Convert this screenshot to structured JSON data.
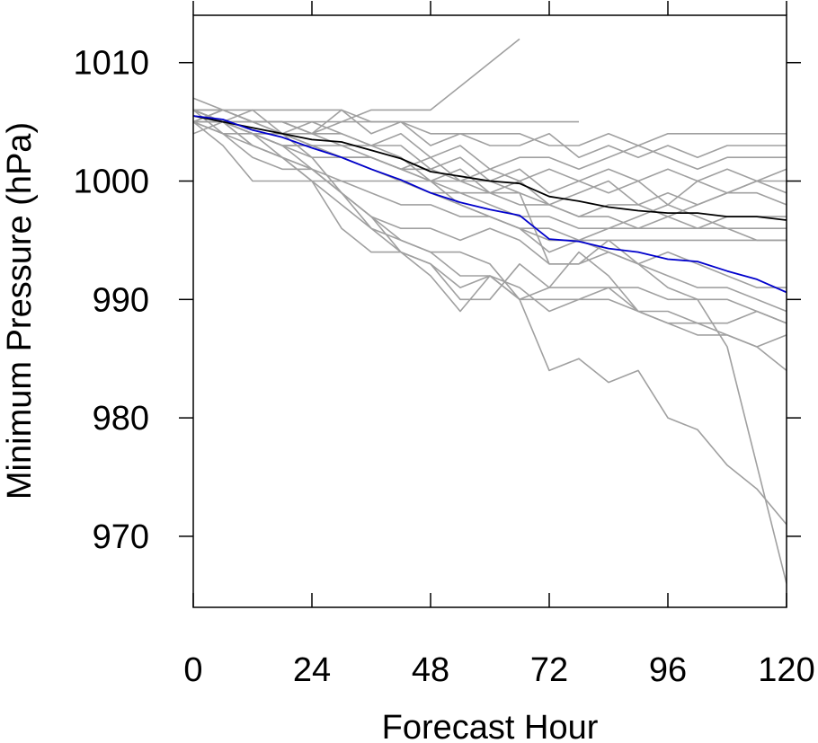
{
  "chart_data": {
    "type": "line",
    "title": "",
    "xlabel": "Forecast Hour",
    "ylabel": "Minimum Pressure (hPa)",
    "xlim": [
      0,
      120
    ],
    "ylim": [
      964,
      1014
    ],
    "x_ticks": [
      0,
      24,
      48,
      72,
      96,
      120
    ],
    "y_ticks": [
      970,
      980,
      990,
      1000,
      1010
    ],
    "x_tick_labels": [
      "0",
      "24",
      "48",
      "72",
      "96",
      "120"
    ],
    "y_tick_labels": [
      "970",
      "980",
      "990",
      "1000",
      "1010"
    ],
    "grid": false,
    "legend": "none",
    "colors": {
      "members": "#a0a0a0",
      "mean": "#000000",
      "highlight": "#0000cc"
    },
    "series": [
      {
        "role": "member",
        "x": [
          0,
          6,
          12,
          18,
          24,
          30,
          36,
          42,
          48,
          54,
          60,
          66
        ],
        "y": [
          1006,
          1006,
          1005,
          1005,
          1004,
          1005,
          1006,
          1006,
          1006,
          1008,
          1010,
          1012
        ]
      },
      {
        "role": "member",
        "x": [
          0,
          6,
          12,
          18,
          24,
          30,
          36,
          42,
          48,
          54,
          60,
          66,
          72,
          78
        ],
        "y": [
          1005,
          1005,
          1005,
          1005,
          1005,
          1005,
          1005,
          1005,
          1005,
          1005,
          1005,
          1005,
          1005,
          1005
        ]
      },
      {
        "role": "member",
        "x": [
          0,
          6,
          12,
          18,
          24,
          30,
          36,
          42,
          48,
          54,
          60,
          66,
          72,
          78,
          84,
          90,
          96,
          102,
          108,
          114,
          120
        ],
        "y": [
          1006,
          1006,
          1006,
          1006,
          1006,
          1006,
          1005,
          1005,
          1004,
          1004,
          1004,
          1004,
          1003,
          1003,
          1004,
          1003,
          1004,
          1004,
          1004,
          1004,
          1004
        ]
      },
      {
        "role": "member",
        "x": [
          0,
          6,
          12,
          18,
          24,
          30,
          36,
          42,
          48,
          54,
          60,
          66,
          72,
          78,
          84,
          90,
          96,
          102,
          108,
          114,
          120
        ],
        "y": [
          1005,
          1006,
          1005,
          1005,
          1004,
          1006,
          1004,
          1005,
          1003,
          1004,
          1003,
          1003,
          1004,
          1002,
          1003,
          1002,
          1003,
          1002,
          1003,
          1003,
          1003
        ]
      },
      {
        "role": "member",
        "x": [
          0,
          6,
          12,
          18,
          24,
          30,
          36,
          42,
          48,
          54,
          60,
          66,
          72,
          78,
          84,
          90,
          96,
          102,
          108,
          114,
          120
        ],
        "y": [
          1006,
          1005,
          1006,
          1004,
          1005,
          1004,
          1003,
          1004,
          1002,
          1003,
          1001,
          1002,
          1002,
          1001,
          1002,
          1003,
          1002,
          1001,
          1002,
          1002,
          1002
        ]
      },
      {
        "role": "member",
        "x": [
          0,
          6,
          12,
          18,
          24,
          30,
          36,
          42,
          48,
          54,
          60,
          66,
          72,
          78,
          84,
          90,
          96,
          102,
          108,
          114,
          120
        ],
        "y": [
          1005,
          1006,
          1005,
          1004,
          1003,
          1003,
          1002,
          1001,
          1002,
          1000,
          1001,
          1000,
          1001,
          1000,
          1001,
          1000,
          1001,
          1000,
          1001,
          1000,
          1001
        ]
      },
      {
        "role": "member",
        "x": [
          0,
          6,
          12,
          18,
          24,
          30,
          36,
          42,
          48,
          54,
          60,
          66,
          72,
          78,
          84,
          90,
          96,
          102,
          108,
          114,
          120
        ],
        "y": [
          1006,
          1005,
          1005,
          1005,
          1004,
          1004,
          1003,
          1003,
          1001,
          1002,
          1000,
          1001,
          999,
          1000,
          999,
          1000,
          998,
          1000,
          999,
          1000,
          1000
        ]
      },
      {
        "role": "member",
        "x": [
          0,
          6,
          12,
          18,
          24,
          30,
          36,
          42,
          48,
          54,
          60,
          66,
          72,
          78,
          84,
          90,
          96,
          102,
          108,
          114,
          120
        ],
        "y": [
          1005,
          1005,
          1004,
          1004,
          1004,
          1003,
          1003,
          1002,
          1000,
          1001,
          999,
          1000,
          998,
          999,
          1000,
          998,
          999,
          998,
          999,
          1000,
          999
        ]
      },
      {
        "role": "member",
        "x": [
          0,
          6,
          12,
          18,
          24,
          30,
          36,
          42,
          48,
          54,
          60,
          66,
          72,
          78,
          84,
          90,
          96,
          102,
          108,
          114,
          120
        ],
        "y": [
          1004,
          1005,
          1004,
          1003,
          1003,
          1002,
          1002,
          1001,
          1000,
          1000,
          999,
          999,
          998,
          997,
          998,
          998,
          997,
          998,
          999,
          999,
          998
        ]
      },
      {
        "role": "member",
        "x": [
          0,
          6,
          12,
          18,
          24,
          30,
          36,
          42,
          48,
          54,
          60,
          66,
          72,
          78,
          84,
          90,
          96,
          102,
          108,
          114,
          120
        ],
        "y": [
          1005,
          1005,
          1004,
          1004,
          1003,
          1002,
          1002,
          1001,
          1000,
          999,
          999,
          998,
          998,
          997,
          997,
          996,
          997,
          996,
          997,
          997,
          997
        ]
      },
      {
        "role": "member",
        "x": [
          0,
          6,
          12,
          18,
          24,
          30,
          36,
          42,
          48,
          54,
          60,
          66,
          72,
          78,
          84,
          90,
          96,
          102,
          108,
          114,
          120
        ],
        "y": [
          1005,
          1004,
          1004,
          1003,
          1003,
          1002,
          1001,
          1000,
          999,
          999,
          998,
          997,
          997,
          996,
          996,
          996,
          996,
          996,
          996,
          996,
          996
        ]
      },
      {
        "role": "member",
        "x": [
          0,
          6,
          12,
          18,
          24,
          30,
          36,
          42,
          48,
          54,
          60,
          66,
          72,
          78,
          84,
          90,
          96,
          102,
          108,
          114,
          120
        ],
        "y": [
          1006,
          1005,
          1004,
          1003,
          1002,
          1002,
          1001,
          1000,
          999,
          998,
          997,
          996,
          996,
          995,
          995,
          995,
          995,
          995,
          995,
          995,
          995
        ]
      },
      {
        "role": "member",
        "x": [
          0,
          6,
          12,
          18,
          24,
          30,
          36,
          42,
          48,
          54,
          60,
          66,
          72,
          78,
          84,
          90,
          96,
          102,
          108,
          114,
          120
        ],
        "y": [
          1005,
          1004,
          1002,
          1001,
          1001,
          1000,
          999,
          998,
          998,
          997,
          997,
          996,
          995,
          995,
          996,
          997,
          998,
          997,
          996,
          995,
          995
        ]
      },
      {
        "role": "member",
        "x": [
          0,
          6,
          12,
          18,
          24,
          30,
          36,
          42,
          48,
          54,
          60,
          66,
          72,
          78,
          84,
          90,
          96,
          102,
          108,
          114,
          120
        ],
        "y": [
          1005,
          1003,
          1000,
          1000,
          1000,
          1000,
          1000,
          1000,
          1000,
          998,
          997,
          996,
          994,
          995,
          994,
          993,
          994,
          993,
          992,
          991,
          991
        ]
      },
      {
        "role": "member",
        "x": [
          0,
          6,
          12,
          18,
          24,
          30,
          36,
          42,
          48,
          54,
          60,
          66,
          72,
          78,
          84,
          90,
          96,
          102,
          108,
          114,
          120
        ],
        "y": [
          1006,
          1005,
          1004,
          1003,
          1001,
          999,
          997,
          996,
          996,
          995,
          996,
          995,
          993,
          993,
          994,
          993,
          992,
          991,
          991,
          990,
          989
        ]
      },
      {
        "role": "member",
        "x": [
          0,
          6,
          12,
          18,
          24,
          30,
          36,
          42,
          48,
          54,
          60,
          66,
          72,
          78,
          84,
          90,
          96,
          102,
          108,
          114,
          120
        ],
        "y": [
          1006,
          1005,
          1004,
          1002,
          1000,
          998,
          996,
          995,
          994,
          994,
          993,
          990,
          991,
          991,
          991,
          991,
          990,
          990,
          990,
          989,
          988
        ]
      },
      {
        "role": "member",
        "x": [
          0,
          6,
          12,
          18,
          24,
          30,
          36,
          42,
          48,
          54,
          60,
          66,
          72,
          78,
          84,
          90,
          96,
          102,
          108,
          114,
          120
        ],
        "y": [
          1007,
          1006,
          1005,
          1004,
          1002,
          999,
          996,
          994,
          993,
          991,
          992,
          990,
          990,
          990,
          990,
          989,
          989,
          988,
          988,
          989,
          988
        ]
      },
      {
        "role": "member",
        "x": [
          0,
          6,
          12,
          18,
          24,
          30,
          36,
          42,
          48,
          54,
          60,
          66,
          72,
          78,
          84,
          90,
          96,
          102,
          108,
          114,
          120
        ],
        "y": [
          1006,
          1005,
          1003,
          1002,
          1001,
          999,
          997,
          994,
          992,
          989,
          992,
          991,
          989,
          990,
          991,
          989,
          988,
          987,
          987,
          986,
          987
        ]
      },
      {
        "role": "member",
        "x": [
          0,
          6,
          12,
          18,
          24,
          30,
          36,
          42,
          48,
          54,
          60,
          66,
          72,
          78,
          84,
          90,
          96,
          102,
          108,
          114,
          120
        ],
        "y": [
          1006,
          1004,
          1003,
          1002,
          1000,
          996,
          994,
          994,
          993,
          990,
          990,
          993,
          991,
          994,
          992,
          989,
          988,
          988,
          987,
          986,
          984
        ]
      },
      {
        "role": "member",
        "x": [
          0,
          6,
          12,
          18,
          24,
          30,
          36,
          42,
          48,
          54,
          60,
          66,
          72,
          78,
          84,
          90,
          96,
          102,
          108,
          114,
          120
        ],
        "y": [
          1006,
          1005,
          1003,
          1002,
          1001,
          999,
          997,
          995,
          994,
          992,
          992,
          990,
          984,
          985,
          983,
          984,
          980,
          979,
          976,
          974,
          971
        ]
      },
      {
        "role": "member",
        "x": [
          0,
          6,
          12,
          18,
          24,
          30,
          36,
          42,
          48,
          54,
          60,
          66,
          72,
          78,
          84,
          90,
          96,
          102,
          108,
          114,
          120
        ],
        "y": [
          1006,
          1005,
          1004,
          1003,
          1003,
          1002,
          1002,
          1001,
          1001,
          1000,
          1000,
          999,
          993,
          993,
          995,
          993,
          991,
          990,
          986,
          976,
          966
        ]
      },
      {
        "role": "mean",
        "x": [
          0,
          6,
          12,
          18,
          24,
          30,
          36,
          42,
          48,
          54,
          60,
          66,
          72,
          78,
          84,
          90,
          96,
          102,
          108,
          114,
          120
        ],
        "y": [
          1005.5,
          1005.0,
          1004.5,
          1004.0,
          1003.5,
          1003.3,
          1002.6,
          1001.9,
          1000.8,
          1000.4,
          1000.0,
          999.8,
          998.7,
          998.3,
          997.8,
          997.5,
          997.3,
          997.3,
          997.0,
          997.0,
          996.7
        ]
      },
      {
        "role": "highlight",
        "x": [
          0,
          6,
          12,
          18,
          24,
          30,
          36,
          42,
          48,
          54,
          60,
          66,
          72,
          78,
          84,
          90,
          96,
          102,
          108,
          114,
          120
        ],
        "y": [
          1005.5,
          1005.2,
          1004.3,
          1003.7,
          1002.8,
          1002.0,
          1001.0,
          1000.1,
          999.0,
          998.2,
          997.6,
          997.1,
          995.1,
          994.9,
          994.3,
          994.0,
          993.4,
          993.2,
          992.4,
          991.7,
          990.6
        ]
      }
    ]
  }
}
